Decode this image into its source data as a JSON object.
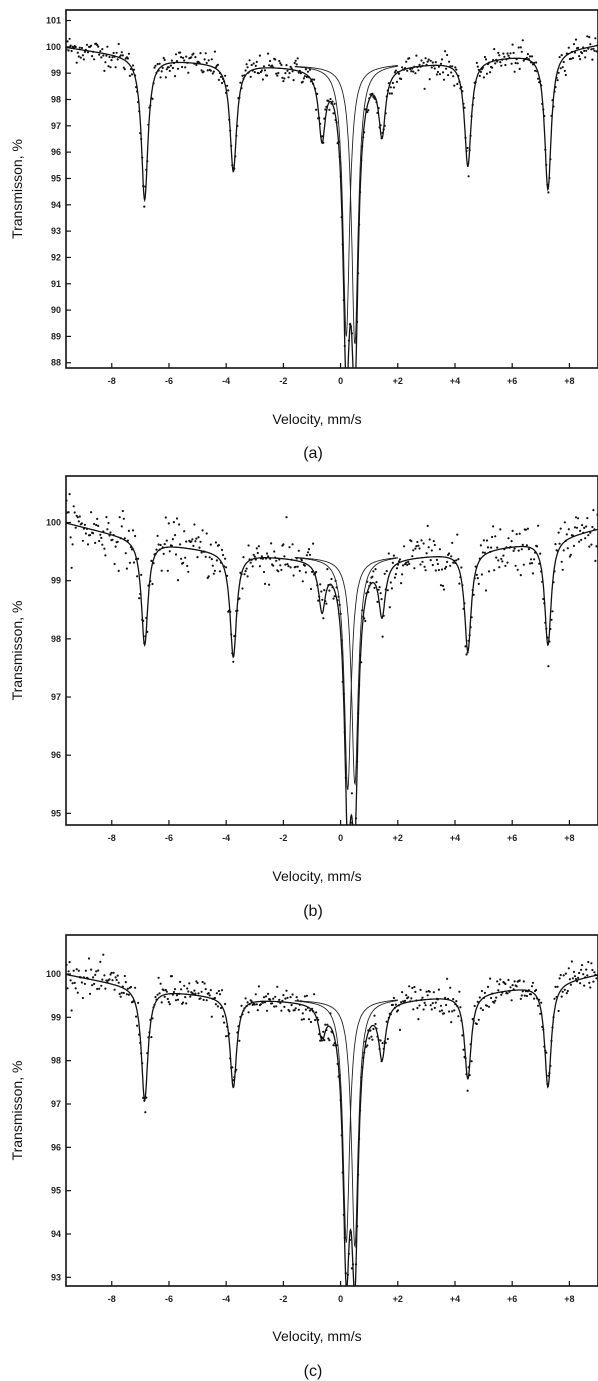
{
  "chart_data": [
    {
      "type": "scatter",
      "panel_label": "(a)",
      "xlabel": "Velocity, mm/s",
      "ylabel": "Transmisson, %",
      "xlim": [
        -9.6,
        9.0
      ],
      "ylim": [
        87.8,
        101.4
      ],
      "x_ticks": [
        -8,
        -6,
        -4,
        -2,
        0,
        2,
        4,
        6,
        8
      ],
      "x_tick_labels": [
        "-8",
        "-6",
        "-4",
        "-2",
        "0",
        "+2",
        "+4",
        "+6",
        "+8"
      ],
      "y_ticks": [
        88,
        89,
        90,
        91,
        92,
        93,
        94,
        95,
        96,
        97,
        98,
        99,
        100,
        101
      ],
      "y_tick_labels": [
        "88",
        "89",
        "90",
        "91",
        "92",
        "93",
        "94",
        "95",
        "96",
        "97",
        "98",
        "99",
        "100",
        "101"
      ],
      "baseline": {
        "at_min_x": 100.0,
        "at_zero": 99.3,
        "at_max_x": 100.1
      },
      "sextet_lines": [
        {
          "x": -6.85,
          "y_min": 94.2
        },
        {
          "x": -3.75,
          "y_min": 95.3
        },
        {
          "x": -0.65,
          "y_min": 96.8
        },
        {
          "x": 1.45,
          "y_min": 96.9
        },
        {
          "x": 4.45,
          "y_min": 95.5
        },
        {
          "x": 7.25,
          "y_min": 94.6
        }
      ],
      "doublet_lines": [
        {
          "x": 0.2,
          "y_min": 89.0
        },
        {
          "x": 0.5,
          "y_min": 88.7
        }
      ],
      "grid": false,
      "legend": "none"
    },
    {
      "type": "scatter",
      "panel_label": "(b)",
      "xlabel": "Velocity, mm/s",
      "ylabel": "Transmisson, %",
      "xlim": [
        -9.6,
        9.0
      ],
      "ylim": [
        94.8,
        100.8
      ],
      "x_ticks": [
        -8,
        -6,
        -4,
        -2,
        0,
        2,
        4,
        6,
        8
      ],
      "x_tick_labels": [
        "-8",
        "-6",
        "-4",
        "-2",
        "0",
        "+2",
        "+4",
        "+6",
        "+8"
      ],
      "y_ticks": [
        95,
        96,
        97,
        98,
        99,
        100
      ],
      "y_tick_labels": [
        "95",
        "96",
        "97",
        "98",
        "99",
        "100"
      ],
      "baseline": {
        "at_min_x": 100.0,
        "at_zero": 99.4,
        "at_max_x": 99.9
      },
      "sextet_lines": [
        {
          "x": -6.85,
          "y_min": 97.9
        },
        {
          "x": -3.75,
          "y_min": 97.7
        },
        {
          "x": -0.65,
          "y_min": 98.6
        },
        {
          "x": 1.45,
          "y_min": 98.5
        },
        {
          "x": 4.45,
          "y_min": 97.8
        },
        {
          "x": 7.25,
          "y_min": 97.9
        }
      ],
      "doublet_lines": [
        {
          "x": 0.25,
          "y_min": 95.4
        },
        {
          "x": 0.5,
          "y_min": 95.5
        }
      ],
      "grid": false,
      "legend": "none"
    },
    {
      "type": "scatter",
      "panel_label": "(c)",
      "xlabel": "Velocity, mm/s",
      "ylabel": "Transmisson, %",
      "xlim": [
        -9.6,
        9.0
      ],
      "ylim": [
        92.8,
        100.9
      ],
      "x_ticks": [
        -8,
        -6,
        -4,
        -2,
        0,
        2,
        4,
        6,
        8
      ],
      "x_tick_labels": [
        "-8",
        "-6",
        "-4",
        "-2",
        "0",
        "+2",
        "+4",
        "+6",
        "+8"
      ],
      "y_ticks": [
        93,
        94,
        95,
        96,
        97,
        98,
        99,
        100
      ],
      "y_tick_labels": [
        "93",
        "94",
        "95",
        "96",
        "97",
        "98",
        "99",
        "100"
      ],
      "baseline": {
        "at_min_x": 100.0,
        "at_zero": 99.4,
        "at_max_x": 100.0
      },
      "sextet_lines": [
        {
          "x": -6.85,
          "y_min": 97.1
        },
        {
          "x": -3.75,
          "y_min": 97.4
        },
        {
          "x": -0.65,
          "y_min": 98.7
        },
        {
          "x": 1.45,
          "y_min": 98.2
        },
        {
          "x": 4.45,
          "y_min": 97.6
        },
        {
          "x": 7.25,
          "y_min": 97.4
        }
      ],
      "doublet_lines": [
        {
          "x": 0.2,
          "y_min": 93.8
        },
        {
          "x": 0.5,
          "y_min": 93.7
        }
      ],
      "grid": false,
      "legend": "none"
    }
  ]
}
